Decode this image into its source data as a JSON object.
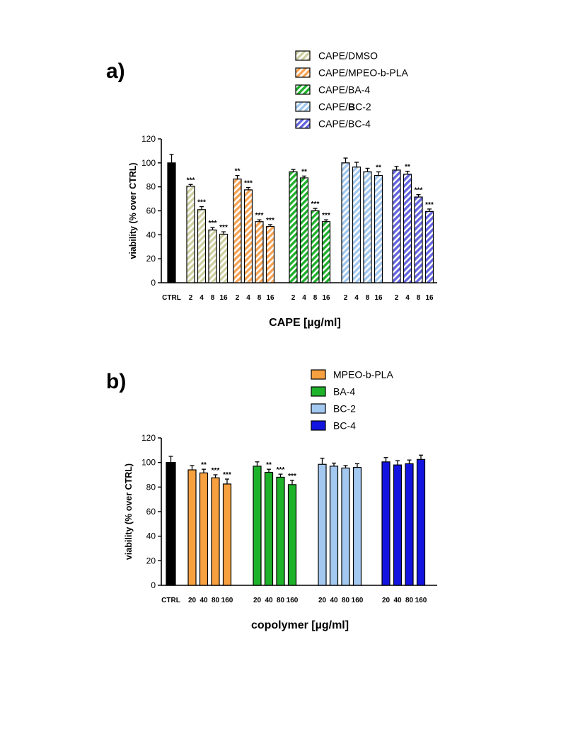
{
  "chart_data": [
    {
      "type": "bar",
      "panel": "a)",
      "xlabel": "CAPE [µg/ml]",
      "ylabel": "viability (% over CTRL)",
      "ylim": [
        0,
        120
      ],
      "yticks": [
        0,
        20,
        40,
        60,
        80,
        100,
        120
      ],
      "pattern": "hatched",
      "control": {
        "label": "CTRL",
        "value": 100,
        "error": 7,
        "color": "#000000"
      },
      "categories": [
        "2",
        "4",
        "8",
        "16"
      ],
      "series": [
        {
          "name": "CAPE/DMSO",
          "color": "#cfd0a3",
          "values": [
            80.5,
            61,
            44,
            40.5
          ],
          "errors": [
            1.5,
            2.5,
            2,
            2
          ],
          "significance": [
            "***",
            "***",
            "***",
            "***"
          ]
        },
        {
          "name": "CAPE/MPEO-b-PLA",
          "color": "#f7a354",
          "values": [
            86.5,
            77.5,
            51,
            47
          ],
          "errors": [
            3,
            2,
            1.5,
            1.5
          ],
          "significance": [
            "**",
            "***",
            "***",
            "***"
          ]
        },
        {
          "name": "CAPE/BA-4",
          "color": "#1fb02c",
          "values": [
            92.5,
            87.5,
            60,
            51
          ],
          "errors": [
            2,
            1.5,
            2,
            1.5
          ],
          "significance": [
            "",
            "**",
            "***",
            "***"
          ]
        },
        {
          "name": "CAPE/BC-2",
          "legend_parts": [
            "CAPE/",
            "B",
            "C-2"
          ],
          "color": "#a2c7ee",
          "values": [
            100,
            96.5,
            92.5,
            89.5
          ],
          "errors": [
            4,
            4,
            3,
            3
          ],
          "significance": [
            "",
            "",
            "",
            "**"
          ]
        },
        {
          "name": "CAPE/BC-4",
          "color": "#6464e0",
          "values": [
            94,
            90.5,
            71.5,
            59.5
          ],
          "errors": [
            3,
            2.5,
            2,
            2
          ],
          "significance": [
            "",
            "**",
            "***",
            "***"
          ]
        }
      ]
    },
    {
      "type": "bar",
      "panel": "b)",
      "xlabel": "copolymer [µg/ml]",
      "ylabel": "viability (% over CTRL)",
      "ylim": [
        0,
        120
      ],
      "yticks": [
        0,
        20,
        40,
        60,
        80,
        100,
        120
      ],
      "pattern": "solid",
      "control": {
        "label": "CTRL",
        "value": 100,
        "error": 5,
        "color": "#000000"
      },
      "categories": [
        "20",
        "40",
        "80",
        "160"
      ],
      "series": [
        {
          "name": "MPEO-b-PLA",
          "color": "#f7a03f",
          "values": [
            94,
            91.5,
            87.5,
            82.5
          ],
          "errors": [
            3.5,
            3,
            2.5,
            4
          ],
          "significance": [
            "",
            "**",
            "***",
            "***"
          ]
        },
        {
          "name": "BA-4",
          "color": "#1eb22b",
          "values": [
            97,
            92,
            88,
            82
          ],
          "errors": [
            3.5,
            2.5,
            2.5,
            3.5
          ],
          "significance": [
            "",
            "**",
            "***",
            "***"
          ]
        },
        {
          "name": "BC-2",
          "color": "#a4c9f0",
          "values": [
            98.5,
            97,
            95.5,
            96
          ],
          "errors": [
            5,
            2.5,
            2,
            3
          ],
          "significance": [
            "",
            "",
            "",
            ""
          ]
        },
        {
          "name": "BC-4",
          "color": "#1414e0",
          "values": [
            100.5,
            98,
            99,
            102.5
          ],
          "errors": [
            3.5,
            3.5,
            3,
            3.5
          ],
          "significance": [
            "",
            "",
            "",
            ""
          ]
        }
      ]
    }
  ]
}
